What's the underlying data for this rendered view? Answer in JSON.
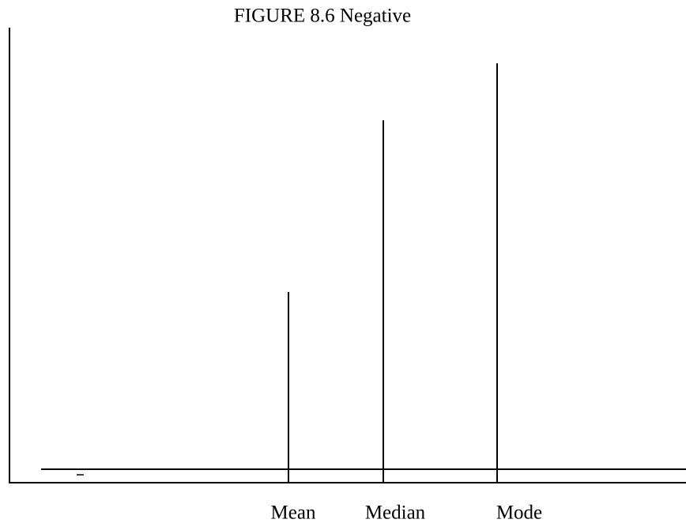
{
  "title": "FIGURE 8.6 Negative",
  "labels": [
    "Mean",
    "Median",
    "Mode"
  ]
}
